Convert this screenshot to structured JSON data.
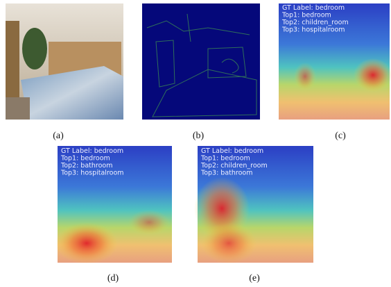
{
  "panels": [
    {
      "caption": "(a)"
    },
    {
      "caption": "(b)"
    },
    {
      "caption": "(c)",
      "labels": [
        "GT Label: bedroom",
        "Top1: bedroom",
        "Top2: children_room",
        "Top3: hospitalroom"
      ]
    },
    {
      "caption": "(d)",
      "labels": [
        "GT Label: bedroom",
        "Top1: bedroom",
        "Top2: bathroom",
        "Top3: hospitalroom"
      ]
    },
    {
      "caption": "(e)",
      "labels": [
        "GT Label: bedroom",
        "Top1: bedroom",
        "Top2: children_room",
        "Top3: bathroom"
      ]
    }
  ]
}
